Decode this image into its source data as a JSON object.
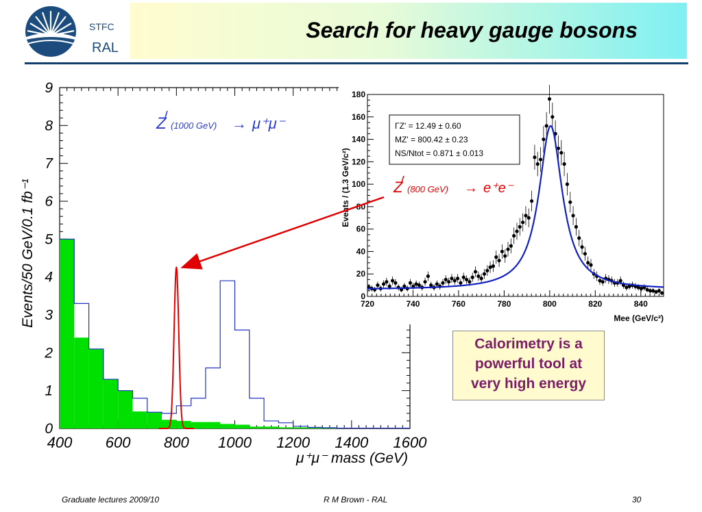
{
  "header": {
    "logo_line1": "STFC",
    "logo_line2": "RAL",
    "title": "Search for heavy gauge bosons",
    "colors": {
      "logo_blue": "#1c4c7e",
      "header_line": "#143e6a",
      "title_gradient_start": "#fffccf",
      "title_gradient_end": "#7ff0f2"
    }
  },
  "chart_data": [
    {
      "type": "histogram",
      "xlabel": "μ⁺μ⁻ mass (GeV)",
      "ylabel": "Events/50 GeV/0.1 fb⁻¹",
      "xlim": [
        400,
        1600
      ],
      "ylim": [
        0,
        9
      ],
      "x_ticks": [
        "400",
        "600",
        "800",
        "1000",
        "1200",
        "1400",
        "1600"
      ],
      "y_ticks": [
        "0",
        "1",
        "2",
        "3",
        "4",
        "5",
        "6",
        "7",
        "8",
        "9"
      ],
      "bin_edges": [
        400,
        450,
        500,
        550,
        600,
        650,
        700,
        750,
        800,
        850,
        900,
        950,
        1000,
        1050,
        1100,
        1150,
        1200,
        1250,
        1300,
        1350,
        1400,
        1450,
        1500,
        1550,
        1600
      ],
      "series": [
        {
          "name": "",
          "style": "filled-green",
          "color": "#00e000",
          "values": [
            5.0,
            2.4,
            2.1,
            1.3,
            1.0,
            0.45,
            0.43,
            0.23,
            0.2,
            0.17,
            0.17,
            0.12,
            0.1,
            0.05,
            0.05,
            0.03,
            0.03,
            0.02,
            0.02,
            0.01,
            0.01,
            0.01,
            0.01,
            0.01
          ]
        },
        {
          "name": "",
          "style": "outline-blue",
          "color": "#2030c0",
          "values": [
            5.0,
            3.3,
            2.1,
            1.3,
            1.0,
            0.8,
            0.43,
            0.4,
            0.6,
            0.8,
            1.6,
            3.9,
            2.6,
            0.8,
            0.2,
            0.15,
            0.06,
            0.03,
            0.02,
            0.01,
            0.01,
            0.01,
            0.01,
            0.01
          ]
        }
      ],
      "peak_curve": {
        "color": "#e00000",
        "center": 800,
        "height": 4.25,
        "width": 8
      },
      "annotation": {
        "particle": "Z",
        "mass": "(1000 GeV)",
        "arrow": "→",
        "decay": "μ⁺μ⁻",
        "color": "#2b3bcc"
      }
    },
    {
      "type": "scatter",
      "xlabel": "Mee (GeV/c²)",
      "ylabel": "Events / (1.3 GeV/c²)",
      "xlim": [
        720,
        850
      ],
      "ylim": [
        0,
        180
      ],
      "x_ticks": [
        "720",
        "740",
        "760",
        "780",
        "800",
        "820",
        "840"
      ],
      "y_ticks": [
        "0",
        "20",
        "40",
        "60",
        "80",
        "100",
        "120",
        "140",
        "160",
        "180"
      ],
      "fit": {
        "type": "breit-wigner",
        "color": "#1020c0",
        "peak_x": 800.42,
        "peak_y": 152,
        "gamma": 12.49,
        "baseline": 6
      },
      "stats": [
        "ΓZ' = 12.49 ± 0.60",
        "MZ' = 800.42 ± 0.23",
        "NS/Ntot = 0.871 ± 0.013"
      ],
      "points": [
        [
          720.6,
          8
        ],
        [
          721.9,
          7
        ],
        [
          723.2,
          6
        ],
        [
          724.5,
          10
        ],
        [
          725.8,
          7
        ],
        [
          727.1,
          11
        ],
        [
          728.4,
          13
        ],
        [
          729.7,
          9
        ],
        [
          731,
          14
        ],
        [
          732.3,
          12
        ],
        [
          733.6,
          8
        ],
        [
          734.9,
          6
        ],
        [
          736.2,
          9
        ],
        [
          737.5,
          7
        ],
        [
          738.8,
          12
        ],
        [
          740.1,
          9
        ],
        [
          741.4,
          11
        ],
        [
          742.7,
          10
        ],
        [
          744,
          8
        ],
        [
          745.3,
          13
        ],
        [
          746.6,
          18
        ],
        [
          747.9,
          10
        ],
        [
          749.2,
          8
        ],
        [
          750.5,
          11
        ],
        [
          751.8,
          9
        ],
        [
          753.1,
          12
        ],
        [
          754.4,
          15
        ],
        [
          755.7,
          13
        ],
        [
          757,
          16
        ],
        [
          758.3,
          14
        ],
        [
          759.6,
          16
        ],
        [
          760.9,
          12
        ],
        [
          762.2,
          17
        ],
        [
          763.5,
          15
        ],
        [
          764.8,
          13
        ],
        [
          766.1,
          17
        ],
        [
          767.4,
          22
        ],
        [
          768.7,
          18
        ],
        [
          770,
          16
        ],
        [
          771.3,
          20
        ],
        [
          772.6,
          23
        ],
        [
          773.9,
          26
        ],
        [
          775.2,
          27
        ],
        [
          776.5,
          35
        ],
        [
          777.8,
          32
        ],
        [
          779.1,
          40
        ],
        [
          780.4,
          36
        ],
        [
          781.7,
          42
        ],
        [
          783,
          45
        ],
        [
          784.3,
          54
        ],
        [
          785.6,
          58
        ],
        [
          786.9,
          62
        ],
        [
          788.2,
          66
        ],
        [
          789.5,
          72
        ],
        [
          790.8,
          70
        ],
        [
          792.1,
          85
        ],
        [
          793.4,
          124
        ],
        [
          794.7,
          118
        ],
        [
          796,
          122
        ],
        [
          797.3,
          140
        ],
        [
          798.6,
          152
        ],
        [
          799.9,
          176
        ],
        [
          801.2,
          160
        ],
        [
          802.5,
          145
        ],
        [
          803.8,
          132
        ],
        [
          805.1,
          128
        ],
        [
          806.4,
          118
        ],
        [
          807.7,
          100
        ],
        [
          809,
          84
        ],
        [
          810.3,
          72
        ],
        [
          811.6,
          62
        ],
        [
          812.9,
          52
        ],
        [
          814.2,
          44
        ],
        [
          815.5,
          38
        ],
        [
          816.8,
          30
        ],
        [
          818.1,
          28
        ],
        [
          819.4,
          20
        ],
        [
          820.7,
          18
        ],
        [
          822,
          14
        ],
        [
          823.3,
          13
        ],
        [
          824.6,
          16
        ],
        [
          825.9,
          15
        ],
        [
          827.2,
          14
        ],
        [
          828.5,
          12
        ],
        [
          829.8,
          12
        ],
        [
          831.1,
          14
        ],
        [
          832.4,
          10
        ],
        [
          833.7,
          8
        ],
        [
          835,
          9
        ],
        [
          836.3,
          10
        ],
        [
          837.6,
          9
        ],
        [
          838.9,
          8
        ],
        [
          840.2,
          7
        ],
        [
          841.5,
          8
        ],
        [
          842.8,
          6
        ],
        [
          844.1,
          5
        ],
        [
          845.4,
          5
        ],
        [
          846.7,
          4
        ],
        [
          848,
          5
        ],
        [
          849.3,
          3
        ]
      ],
      "annotation": {
        "particle": "Z",
        "mass": "(800 GeV)",
        "arrow": "→",
        "decay": "e⁺e⁻",
        "color": "#e00000"
      }
    }
  ],
  "callout": {
    "lines": [
      "Calorimetry is a",
      "powerful tool at",
      "very high energy"
    ],
    "color": "#7a1e63"
  },
  "footer": {
    "left": "Graduate lectures 2009/10",
    "center": "R M Brown - RAL",
    "right": "30"
  }
}
